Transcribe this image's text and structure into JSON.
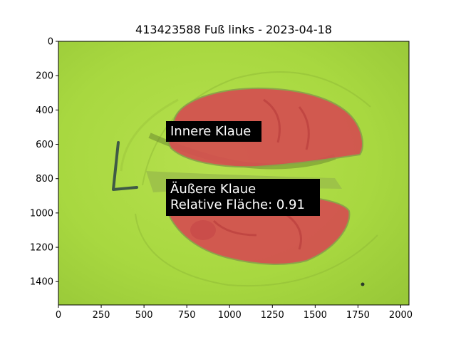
{
  "title": "413423588 Fuß links - 2023-04-18",
  "image_axes": {
    "x_ticks": [
      0,
      250,
      500,
      750,
      1000,
      1250,
      1500,
      1750,
      2000
    ],
    "y_ticks": [
      0,
      200,
      400,
      600,
      800,
      1000,
      1200,
      1400
    ],
    "x_range": [
      0,
      2048
    ],
    "y_range": [
      0,
      1536
    ]
  },
  "annotations": [
    {
      "lines": [
        "Innere Klaue"
      ]
    },
    {
      "lines": [
        "Äußere Klaue",
        "Relative Fläche: 0.91"
      ]
    }
  ],
  "colors": {
    "background_green": "#a8d840",
    "claw_red": "#d45050",
    "label_bg": "#000000",
    "label_text": "#ffffff"
  }
}
